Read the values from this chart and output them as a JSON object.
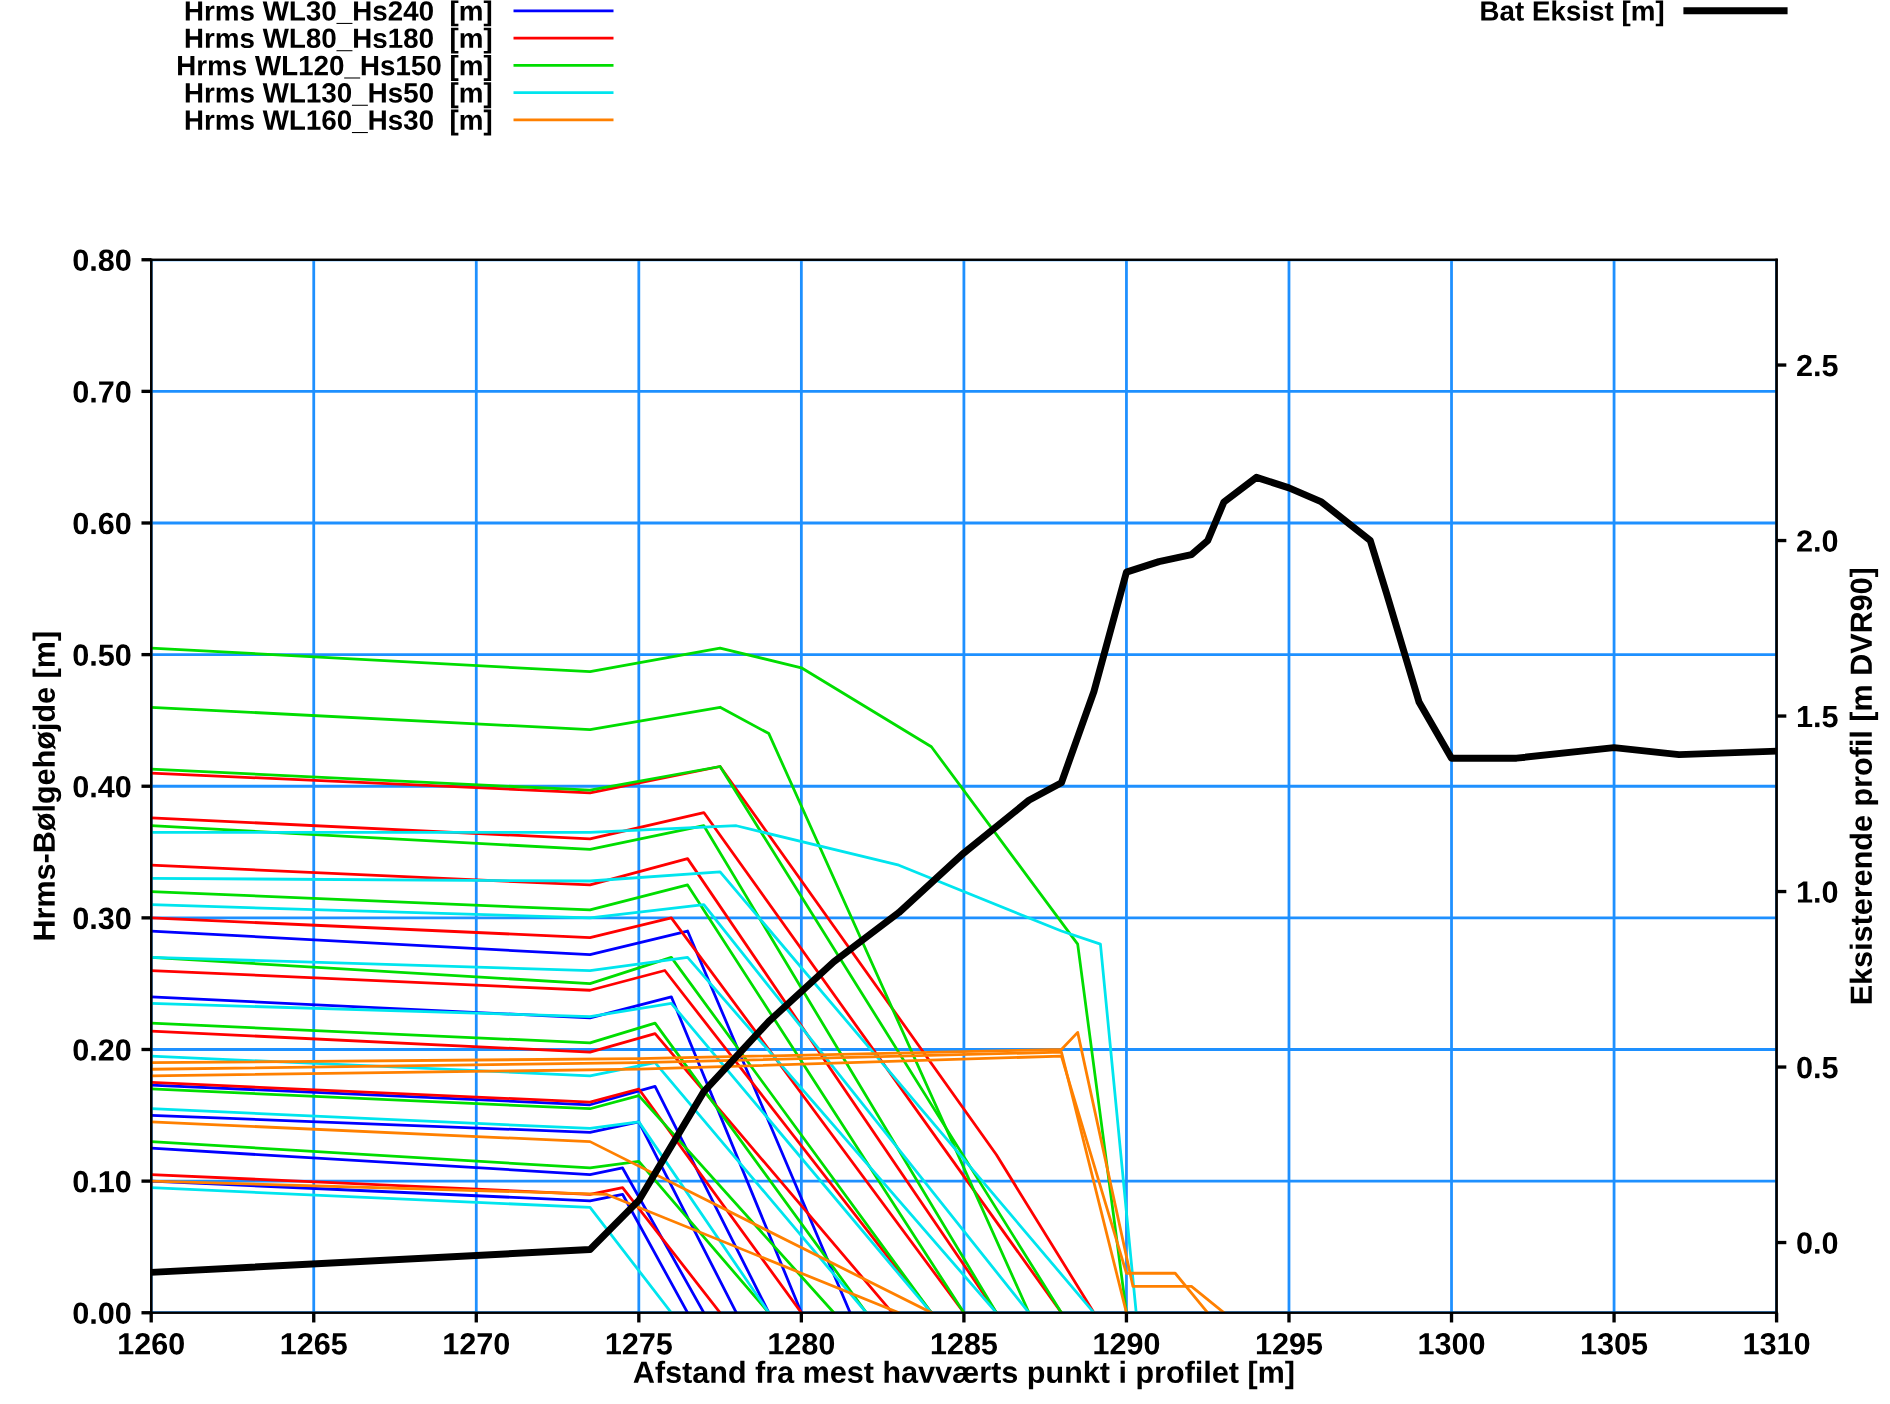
{
  "chart_data": {
    "type": "line",
    "xlabel": "Afstand fra mest havværts punkt i profilet [m]",
    "ylabel": "Hrms-Bølgehøjde [m]",
    "y2label": "Eksisterende profil [m DVR90]",
    "xlim": [
      1260,
      1310
    ],
    "ylim": [
      0,
      0.8
    ],
    "y2lim": [
      -0.2,
      2.8
    ],
    "xticks": [
      1260,
      1265,
      1270,
      1275,
      1280,
      1285,
      1290,
      1295,
      1300,
      1305,
      1310
    ],
    "yticks": [
      {
        "value": 0,
        "label": "0.00"
      },
      {
        "value": 0.1,
        "label": "0.10"
      },
      {
        "value": 0.2,
        "label": "0.20"
      },
      {
        "value": 0.3,
        "label": "0.30"
      },
      {
        "value": 0.4,
        "label": "0.40"
      },
      {
        "value": 0.5,
        "label": "0.50"
      },
      {
        "value": 0.6,
        "label": "0.60"
      },
      {
        "value": 0.7,
        "label": "0.70"
      },
      {
        "value": 0.8,
        "label": "0.80"
      }
    ],
    "y2ticks": [
      {
        "value": 0,
        "label": "0.0"
      },
      {
        "value": 0.5,
        "label": "0.5"
      },
      {
        "value": 1,
        "label": "1.0"
      },
      {
        "value": 1.5,
        "label": "1.5"
      },
      {
        "value": 2,
        "label": "2.0"
      },
      {
        "value": 2.5,
        "label": "2.5"
      }
    ],
    "grid": true,
    "legend": "top",
    "line_style": "solid",
    "marker": "none",
    "series": [
      {
        "name": "Hrms WL30_Hs240  [m]",
        "color": "#0000ff",
        "x": [
          1260,
          1273.5,
          1276.5,
          1281.5
        ],
        "values": [
          0.29,
          0.272,
          0.29,
          0
        ]
      },
      {
        "color": "#0000ff",
        "x": [
          1260,
          1273.5,
          1276,
          1280
        ],
        "values": [
          0.24,
          0.224,
          0.24,
          0
        ]
      },
      {
        "color": "#0000ff",
        "x": [
          1260,
          1273.5,
          1275.5,
          1279
        ],
        "values": [
          0.173,
          0.158,
          0.172,
          0
        ]
      },
      {
        "color": "#0000ff",
        "x": [
          1260,
          1273.5,
          1275,
          1278
        ],
        "values": [
          0.15,
          0.137,
          0.145,
          0
        ]
      },
      {
        "color": "#0000ff",
        "x": [
          1260,
          1273.5,
          1274.5,
          1277
        ],
        "values": [
          0.125,
          0.105,
          0.11,
          0
        ]
      },
      {
        "color": "#0000ff",
        "x": [
          1260,
          1273.5,
          1274.5,
          1276.5
        ],
        "values": [
          0.1,
          0.085,
          0.09,
          0
        ]
      },
      {
        "name": "Hrms WL80_Hs180  [m]",
        "color": "#ff0000",
        "x": [
          1260,
          1273.5,
          1277.5,
          1286,
          1289
        ],
        "values": [
          0.41,
          0.395,
          0.415,
          0.12,
          0
        ]
      },
      {
        "color": "#ff0000",
        "x": [
          1260,
          1273.5,
          1277,
          1288
        ],
        "values": [
          0.376,
          0.36,
          0.38,
          0
        ]
      },
      {
        "color": "#ff0000",
        "x": [
          1260,
          1273.5,
          1276.5,
          1286
        ],
        "values": [
          0.34,
          0.325,
          0.345,
          0
        ]
      },
      {
        "color": "#ff0000",
        "x": [
          1260,
          1273.5,
          1276,
          1285
        ],
        "values": [
          0.3,
          0.285,
          0.3,
          0
        ]
      },
      {
        "color": "#ff0000",
        "x": [
          1260,
          1273.5,
          1275.8,
          1284
        ],
        "values": [
          0.26,
          0.245,
          0.26,
          0
        ]
      },
      {
        "color": "#ff0000",
        "x": [
          1260,
          1273.5,
          1275.5,
          1282.8
        ],
        "values": [
          0.214,
          0.198,
          0.212,
          0
        ]
      },
      {
        "color": "#ff0000",
        "x": [
          1260,
          1273.5,
          1275,
          1280
        ],
        "values": [
          0.175,
          0.16,
          0.17,
          0
        ]
      },
      {
        "color": "#ff0000",
        "x": [
          1260,
          1273.5,
          1274.5,
          1277.5
        ],
        "values": [
          0.105,
          0.09,
          0.095,
          0
        ]
      },
      {
        "name": "Hrms WL120_Hs150 [m]",
        "color": "#00dd00",
        "x": [
          1260,
          1273.5,
          1277.5,
          1280,
          1284,
          1287,
          1288.5,
          1290
        ],
        "values": [
          0.505,
          0.487,
          0.505,
          0.49,
          0.43,
          0.33,
          0.28,
          0
        ]
      },
      {
        "color": "#00dd00",
        "x": [
          1260,
          1273.5,
          1277.5,
          1279,
          1287
        ],
        "values": [
          0.46,
          0.443,
          0.46,
          0.44,
          0
        ]
      },
      {
        "color": "#00dd00",
        "x": [
          1260,
          1273.5,
          1277.5,
          1288
        ],
        "values": [
          0.413,
          0.397,
          0.415,
          0
        ]
      },
      {
        "color": "#00dd00",
        "x": [
          1260,
          1273.5,
          1277,
          1286
        ],
        "values": [
          0.37,
          0.352,
          0.37,
          0
        ]
      },
      {
        "color": "#00dd00",
        "x": [
          1260,
          1273.5,
          1276.5,
          1285
        ],
        "values": [
          0.32,
          0.306,
          0.325,
          0
        ]
      },
      {
        "color": "#00dd00",
        "x": [
          1260,
          1273.5,
          1276,
          1284
        ],
        "values": [
          0.27,
          0.25,
          0.27,
          0
        ]
      },
      {
        "color": "#00dd00",
        "x": [
          1260,
          1273.5,
          1275.5,
          1282
        ],
        "values": [
          0.22,
          0.205,
          0.22,
          0
        ]
      },
      {
        "color": "#00dd00",
        "x": [
          1260,
          1273.5,
          1275,
          1281
        ],
        "values": [
          0.17,
          0.155,
          0.165,
          0
        ]
      },
      {
        "color": "#00dd00",
        "x": [
          1260,
          1273.5,
          1275,
          1279
        ],
        "values": [
          0.13,
          0.11,
          0.115,
          0
        ]
      },
      {
        "name": "Hrms WL130_Hs50  [m]",
        "color": "#00e5ee",
        "x": [
          1260,
          1273.5,
          1278,
          1283,
          1288,
          1289.2,
          1290.3
        ],
        "values": [
          0.365,
          0.365,
          0.37,
          0.34,
          0.29,
          0.28,
          0
        ]
      },
      {
        "color": "#00e5ee",
        "x": [
          1260,
          1273.5,
          1277.5,
          1289
        ],
        "values": [
          0.33,
          0.328,
          0.335,
          0
        ]
      },
      {
        "color": "#00e5ee",
        "x": [
          1260,
          1273.5,
          1277,
          1287
        ],
        "values": [
          0.31,
          0.3,
          0.31,
          0
        ]
      },
      {
        "color": "#00e5ee",
        "x": [
          1260,
          1273.5,
          1276.5,
          1286
        ],
        "values": [
          0.27,
          0.26,
          0.27,
          0
        ]
      },
      {
        "color": "#00e5ee",
        "x": [
          1260,
          1273.5,
          1276,
          1284
        ],
        "values": [
          0.235,
          0.225,
          0.235,
          0
        ]
      },
      {
        "color": "#00e5ee",
        "x": [
          1260,
          1273.5,
          1275.5,
          1282
        ],
        "values": [
          0.195,
          0.18,
          0.19,
          0
        ]
      },
      {
        "color": "#00e5ee",
        "x": [
          1260,
          1273.5,
          1275,
          1279
        ],
        "values": [
          0.155,
          0.14,
          0.145,
          0
        ]
      },
      {
        "color": "#00e5ee",
        "x": [
          1260,
          1273.5,
          1276
        ],
        "values": [
          0.095,
          0.08,
          0
        ]
      },
      {
        "name": "Hrms WL160_Hs30  [m]",
        "color": "#ff8000",
        "x": [
          1260,
          1275,
          1288,
          1288.5,
          1290.2,
          1292,
          1293
        ],
        "values": [
          0.19,
          0.193,
          0.2,
          0.213,
          0.02,
          0.02,
          0
        ]
      },
      {
        "color": "#ff8000",
        "x": [
          1260,
          1275,
          1288,
          1290
        ],
        "values": [
          0.185,
          0.19,
          0.198,
          0
        ]
      },
      {
        "color": "#ff8000",
        "x": [
          1260,
          1275,
          1288,
          1290,
          1291.5,
          1292.5
        ],
        "values": [
          0.18,
          0.185,
          0.195,
          0.03,
          0.03,
          0
        ]
      },
      {
        "color": "#ff8000",
        "x": [
          1260,
          1273.5,
          1284
        ],
        "values": [
          0.145,
          0.13,
          0
        ]
      },
      {
        "color": "#ff8000",
        "x": [
          1260,
          1274,
          1283
        ],
        "values": [
          0.1,
          0.09,
          0
        ]
      },
      {
        "name": "Bat Eksist [m]",
        "color": "#000000",
        "axis": "y2",
        "x": [
          1260,
          1273.5,
          1275,
          1277,
          1279,
          1281,
          1283,
          1285,
          1287,
          1288,
          1289,
          1290,
          1291,
          1292,
          1292.5,
          1293,
          1294,
          1295,
          1296,
          1297.5,
          1298,
          1299,
          1300,
          1302,
          1305,
          1307,
          1310
        ],
        "values": [
          -0.085,
          -0.02,
          0.12,
          0.43,
          0.63,
          0.8,
          0.94,
          1.11,
          1.26,
          1.31,
          1.57,
          1.91,
          1.94,
          1.96,
          2.0,
          2.11,
          2.18,
          2.15,
          2.11,
          2.0,
          1.85,
          1.54,
          1.38,
          1.38,
          1.41,
          1.39,
          1.4
        ]
      }
    ]
  }
}
